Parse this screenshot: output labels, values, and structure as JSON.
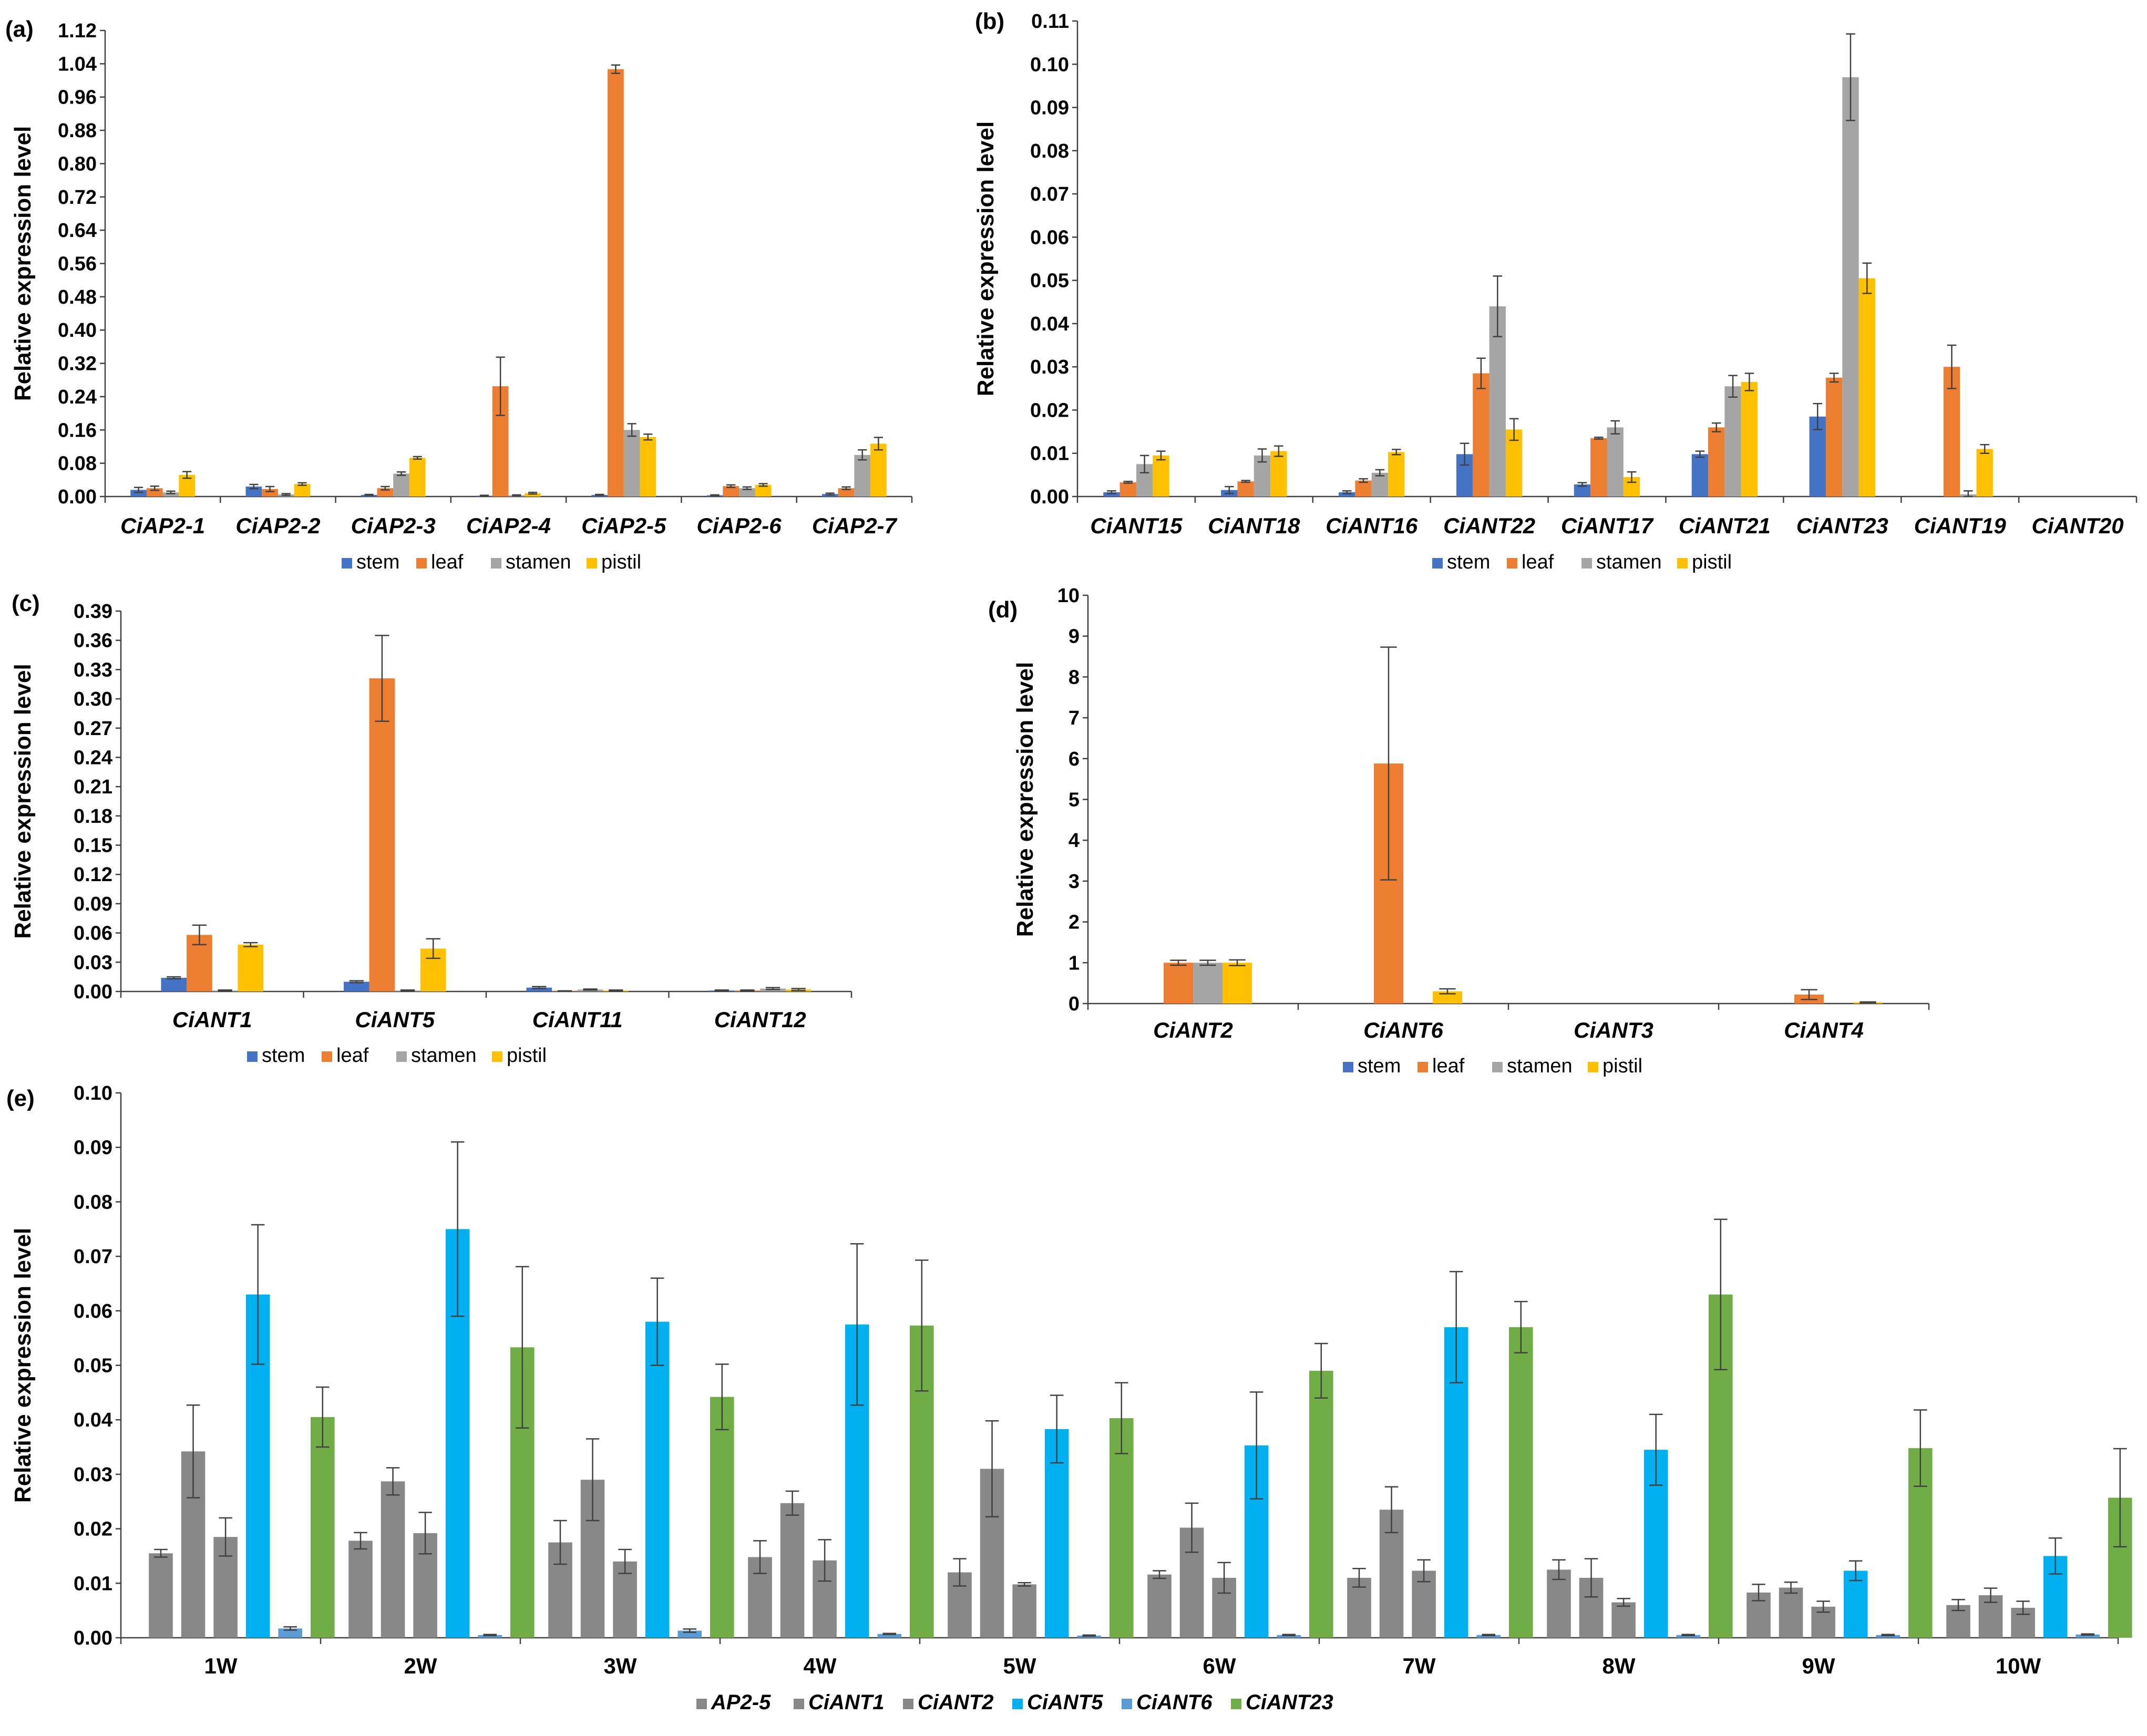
{
  "colors": {
    "stem": "#4472C4",
    "leaf": "#ED7D31",
    "stamen": "#A5A5A5",
    "pistil": "#FFC000",
    "CiANT5": "#00B0F0",
    "CiANT6": "#5B9BD5",
    "CiANT23": "#70AD47"
  },
  "chart_data": [
    {
      "panel": "(a)",
      "type": "bar",
      "ylabel": "Relative expression level",
      "ylim": [
        0,
        1.12
      ],
      "yticks": [
        "0.00",
        "0.08",
        "0.16",
        "0.24",
        "0.32",
        "0.40",
        "0.48",
        "0.56",
        "0.64",
        "0.72",
        "0.80",
        "0.88",
        "0.96",
        "1.04",
        "1.12"
      ],
      "categories": [
        "CiAP2-1",
        "CiAP2-2",
        "CiAP2-3",
        "CiAP2-4",
        "CiAP2-5",
        "CiAP2-6",
        "CiAP2-7"
      ],
      "series": [
        {
          "name": "stem",
          "values": [
            0.016,
            0.024,
            0.004,
            0.002,
            0.004,
            0.003,
            0.006
          ],
          "errors": [
            0.006,
            0.005,
            0.001,
            0.001,
            0.001,
            0.001,
            0.002
          ]
        },
        {
          "name": "leaf",
          "values": [
            0.02,
            0.018,
            0.02,
            0.265,
            1.027,
            0.025,
            0.02
          ],
          "errors": [
            0.005,
            0.006,
            0.004,
            0.07,
            0.01,
            0.003,
            0.003
          ]
        },
        {
          "name": "stamen",
          "values": [
            0.01,
            0.005,
            0.055,
            0.003,
            0.16,
            0.02,
            0.1
          ],
          "errors": [
            0.003,
            0.002,
            0.004,
            0.001,
            0.015,
            0.003,
            0.012
          ]
        },
        {
          "name": "pistil",
          "values": [
            0.052,
            0.03,
            0.093,
            0.008,
            0.143,
            0.028,
            0.127
          ],
          "errors": [
            0.008,
            0.003,
            0.003,
            0.002,
            0.007,
            0.003,
            0.015
          ]
        }
      ],
      "legend": [
        "stem",
        "leaf",
        "stamen",
        "pistil"
      ]
    },
    {
      "panel": "(b)",
      "type": "bar",
      "ylabel": "Relative expression level",
      "ylim": [
        0,
        0.11
      ],
      "yticks": [
        "0.00",
        "0.01",
        "0.02",
        "0.03",
        "0.04",
        "0.05",
        "0.06",
        "0.07",
        "0.08",
        "0.09",
        "0.10",
        "0.11"
      ],
      "categories": [
        "CiANT15",
        "CiANT18",
        "CiANT16",
        "CiANT22",
        "CiANT17",
        "CiANT21",
        "CiANT23",
        "CiANT19",
        "CiANT20"
      ],
      "series": [
        {
          "name": "stem",
          "values": [
            0.001,
            0.0015,
            0.001,
            0.0098,
            0.0028,
            0.0098,
            0.0185,
            0,
            0
          ],
          "errors": [
            0.0003,
            0.0008,
            0.0003,
            0.0025,
            0.0004,
            0.0007,
            0.003,
            0,
            0
          ]
        },
        {
          "name": "leaf",
          "values": [
            0.0033,
            0.0035,
            0.0037,
            0.0285,
            0.0135,
            0.016,
            0.0275,
            0.03,
            0
          ],
          "errors": [
            0.0002,
            0.0002,
            0.0004,
            0.0035,
            0.0002,
            0.001,
            0.001,
            0.005,
            0
          ]
        },
        {
          "name": "stamen",
          "values": [
            0.0075,
            0.0095,
            0.0055,
            0.044,
            0.016,
            0.0255,
            0.097,
            0.0005,
            0
          ],
          "errors": [
            0.002,
            0.0015,
            0.0007,
            0.007,
            0.0015,
            0.0025,
            0.01,
            0.0008,
            0
          ]
        },
        {
          "name": "pistil",
          "values": [
            0.0095,
            0.0105,
            0.0103,
            0.0155,
            0.0045,
            0.0265,
            0.0505,
            0.011,
            0
          ],
          "errors": [
            0.001,
            0.0012,
            0.0006,
            0.0025,
            0.0012,
            0.002,
            0.0035,
            0.001,
            0
          ]
        }
      ],
      "legend": [
        "stem",
        "leaf",
        "stamen",
        "pistil"
      ]
    },
    {
      "panel": "(c)",
      "type": "bar",
      "ylabel": "Relative expression level",
      "ylim": [
        0,
        0.39
      ],
      "yticks": [
        "0.00",
        "0.03",
        "0.06",
        "0.09",
        "0.12",
        "0.15",
        "0.18",
        "0.21",
        "0.24",
        "0.27",
        "0.30",
        "0.33",
        "0.36",
        "0.39"
      ],
      "categories": [
        "CiANT1",
        "CiANT5",
        "CiANT11",
        "CiANT12"
      ],
      "series": [
        {
          "name": "stem",
          "values": [
            0.014,
            0.01,
            0.004,
            0.001
          ],
          "errors": [
            0.001,
            0.001,
            0.001,
            0.0005
          ]
        },
        {
          "name": "leaf",
          "values": [
            0.058,
            0.321,
            0.0005,
            0.001
          ],
          "errors": [
            0.01,
            0.044,
            0.0002,
            0.0005
          ]
        },
        {
          "name": "stamen",
          "values": [
            0.001,
            0.001,
            0.002,
            0.003
          ],
          "errors": [
            0.0005,
            0.0005,
            0.0005,
            0.001
          ]
        },
        {
          "name": "pistil",
          "values": [
            0.048,
            0.044,
            0.001,
            0.002
          ],
          "errors": [
            0.002,
            0.01,
            0.0005,
            0.001
          ]
        }
      ],
      "legend": [
        "stem",
        "leaf",
        "stamen",
        "pistil"
      ]
    },
    {
      "panel": "(d)",
      "type": "bar",
      "ylabel": "Relative expression level",
      "ylim": [
        0,
        10
      ],
      "yticks": [
        "0",
        "1",
        "2",
        "3",
        "4",
        "5",
        "6",
        "7",
        "8",
        "9",
        "10"
      ],
      "categories": [
        "CiANT2",
        "CiANT6",
        "CiANT3",
        "CiANT4"
      ],
      "series": [
        {
          "name": "stem",
          "values": [
            0,
            0,
            0,
            0
          ],
          "errors": [
            0,
            0,
            0,
            0
          ]
        },
        {
          "name": "leaf",
          "values": [
            1.0,
            5.88,
            0,
            0.22
          ],
          "errors": [
            0.06,
            2.85,
            0,
            0.12
          ]
        },
        {
          "name": "stamen",
          "values": [
            1.0,
            0,
            0,
            0
          ],
          "errors": [
            0.06,
            0,
            0,
            0
          ]
        },
        {
          "name": "pistil",
          "values": [
            1.0,
            0.3,
            0,
            0.03
          ],
          "errors": [
            0.07,
            0.06,
            0,
            0.01
          ]
        }
      ],
      "legend": [
        "stem",
        "leaf",
        "stamen",
        "pistil"
      ]
    },
    {
      "panel": "(e)",
      "type": "bar",
      "ylabel": "Relative expression level",
      "ylim": [
        0,
        0.1
      ],
      "yticks": [
        "0.00",
        "0.01",
        "0.02",
        "0.03",
        "0.04",
        "0.05",
        "0.06",
        "0.07",
        "0.08",
        "0.09",
        "0.10"
      ],
      "categories": [
        "1W",
        "2W",
        "3W",
        "4W",
        "5W",
        "6W",
        "7W",
        "8W",
        "9W",
        "10W"
      ],
      "series": [
        {
          "name": "AP2-5",
          "values": [
            0.0155,
            0.0178,
            0.0175,
            0.0148,
            0.012,
            0.0116,
            0.011,
            0.0125,
            0.0083,
            0.006
          ],
          "errors": [
            0.0007,
            0.0015,
            0.004,
            0.003,
            0.0025,
            0.0007,
            0.0017,
            0.0018,
            0.0015,
            0.001
          ]
        },
        {
          "name": "CiANT1",
          "values": [
            0.0342,
            0.0287,
            0.029,
            0.0247,
            0.031,
            0.0202,
            0.0235,
            0.011,
            0.0092,
            0.0078
          ],
          "errors": [
            0.0085,
            0.0025,
            0.0075,
            0.0022,
            0.0088,
            0.0045,
            0.0042,
            0.0035,
            0.001,
            0.0013
          ]
        },
        {
          "name": "CiANT2",
          "values": [
            0.0185,
            0.0192,
            0.014,
            0.0142,
            0.0098,
            0.011,
            0.0123,
            0.0065,
            0.0057,
            0.0055
          ],
          "errors": [
            0.0035,
            0.0038,
            0.0022,
            0.0038,
            0.0003,
            0.0028,
            0.002,
            0.0007,
            0.001,
            0.0012
          ]
        },
        {
          "name": "CiANT5",
          "values": [
            0.063,
            0.075,
            0.058,
            0.0575,
            0.0383,
            0.0353,
            0.057,
            0.0345,
            0.0123,
            0.015
          ],
          "errors": [
            0.0128,
            0.016,
            0.008,
            0.0148,
            0.0062,
            0.0098,
            0.0102,
            0.0065,
            0.0018,
            0.0033
          ]
        },
        {
          "name": "CiANT6",
          "values": [
            0.0017,
            0.0005,
            0.0013,
            0.0007,
            0.0004,
            0.0005,
            0.0005,
            0.0005,
            0.0005,
            0.0006
          ],
          "errors": [
            0.0003,
            0.0001,
            0.0003,
            0.0001,
            0.0001,
            0.0001,
            0.0001,
            0.0001,
            0.0001,
            0.0001
          ]
        },
        {
          "name": "CiANT23",
          "values": [
            0.0405,
            0.0533,
            0.0442,
            0.0573,
            0.0403,
            0.049,
            0.057,
            0.063,
            0.0348,
            0.0257
          ],
          "errors": [
            0.0055,
            0.0148,
            0.006,
            0.012,
            0.0065,
            0.005,
            0.0047,
            0.0138,
            0.007,
            0.009
          ]
        }
      ],
      "legend": [
        "AP2-5",
        "CiANT1",
        "CiANT2",
        "CiANT5",
        "CiANT6",
        "CiANT23"
      ]
    }
  ]
}
